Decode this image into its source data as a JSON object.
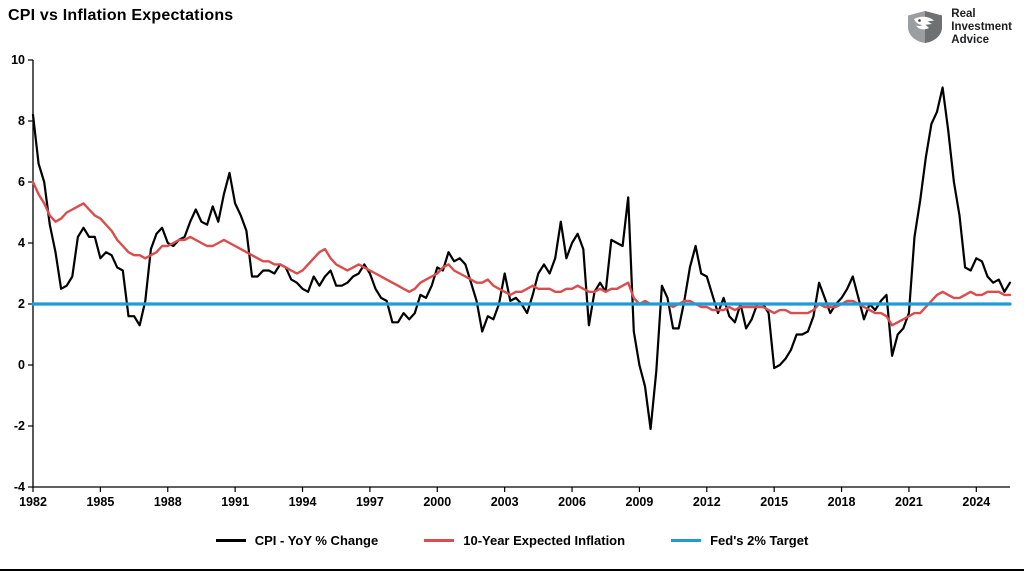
{
  "header": {
    "brand": {
      "lines": [
        "Real",
        "Investment",
        "Advice"
      ],
      "icon": "eagle-shield"
    }
  },
  "chart_data": {
    "type": "line",
    "title": "CPI vs Inflation Expectations",
    "xlabel": "",
    "ylabel": "",
    "xlim": [
      1982,
      2025.5
    ],
    "ylim": [
      -4,
      10
    ],
    "y_ticks": [
      -4,
      -2,
      0,
      2,
      4,
      6,
      8,
      10
    ],
    "x_ticks": [
      1982,
      1985,
      1988,
      1991,
      1994,
      1997,
      2000,
      2003,
      2006,
      2009,
      2012,
      2015,
      2018,
      2021,
      2024
    ],
    "grid": false,
    "legend_position": "bottom",
    "x": {
      "start": 1982,
      "step": 0.25,
      "unit": "year"
    },
    "series": [
      {
        "name": "CPI - YoY % Change",
        "color": "#000000",
        "width": 2.2,
        "values": [
          8.2,
          6.6,
          6.0,
          4.6,
          3.7,
          2.5,
          2.6,
          2.9,
          4.2,
          4.5,
          4.2,
          4.2,
          3.5,
          3.7,
          3.6,
          3.2,
          3.1,
          1.6,
          1.6,
          1.3,
          2.1,
          3.8,
          4.3,
          4.5,
          4.0,
          3.9,
          4.1,
          4.2,
          4.7,
          5.1,
          4.7,
          4.6,
          5.2,
          4.7,
          5.6,
          6.3,
          5.3,
          4.9,
          4.4,
          2.9,
          2.9,
          3.1,
          3.1,
          3.0,
          3.3,
          3.2,
          2.8,
          2.7,
          2.5,
          2.4,
          2.9,
          2.6,
          2.9,
          3.1,
          2.6,
          2.6,
          2.7,
          2.9,
          3.0,
          3.3,
          3.0,
          2.5,
          2.2,
          2.1,
          1.4,
          1.4,
          1.7,
          1.5,
          1.7,
          2.3,
          2.2,
          2.6,
          3.2,
          3.1,
          3.7,
          3.4,
          3.5,
          3.3,
          2.7,
          2.1,
          1.1,
          1.6,
          1.5,
          2.0,
          3.0,
          2.1,
          2.2,
          2.0,
          1.7,
          2.3,
          3.0,
          3.3,
          3.0,
          3.5,
          4.7,
          3.5,
          4.0,
          4.3,
          3.8,
          1.3,
          2.4,
          2.7,
          2.4,
          4.1,
          4.0,
          3.9,
          5.5,
          1.1,
          0.0,
          -0.7,
          -2.1,
          -0.2,
          2.6,
          2.2,
          1.2,
          1.2,
          2.1,
          3.2,
          3.9,
          3.0,
          2.9,
          2.3,
          1.7,
          2.2,
          1.6,
          1.4,
          2.0,
          1.2,
          1.5,
          2.0,
          2.0,
          1.7,
          -0.1,
          0.0,
          0.2,
          0.5,
          1.0,
          1.0,
          1.1,
          1.6,
          2.7,
          2.2,
          1.7,
          2.0,
          2.2,
          2.5,
          2.9,
          2.2,
          1.5,
          2.0,
          1.8,
          2.1,
          2.3,
          0.3,
          1.0,
          1.2,
          1.7,
          4.2,
          5.4,
          6.8,
          7.9,
          8.3,
          9.1,
          7.7,
          6.0,
          4.9,
          3.2,
          3.1,
          3.5,
          3.4,
          2.9,
          2.7,
          2.8,
          2.4,
          2.7
        ]
      },
      {
        "name": "10-Year Expected Inflation",
        "color": "#dd4c4c",
        "width": 2.4,
        "values": [
          6.0,
          5.6,
          5.3,
          4.9,
          4.7,
          4.8,
          5.0,
          5.1,
          5.2,
          5.3,
          5.1,
          4.9,
          4.8,
          4.6,
          4.4,
          4.1,
          3.9,
          3.7,
          3.6,
          3.6,
          3.5,
          3.6,
          3.7,
          3.9,
          3.9,
          4.0,
          4.1,
          4.1,
          4.2,
          4.1,
          4.0,
          3.9,
          3.9,
          4.0,
          4.1,
          4.0,
          3.9,
          3.8,
          3.7,
          3.6,
          3.5,
          3.4,
          3.4,
          3.3,
          3.3,
          3.2,
          3.1,
          3.0,
          3.1,
          3.3,
          3.5,
          3.7,
          3.8,
          3.5,
          3.3,
          3.2,
          3.1,
          3.2,
          3.3,
          3.2,
          3.1,
          3.0,
          2.9,
          2.8,
          2.7,
          2.6,
          2.5,
          2.4,
          2.5,
          2.7,
          2.8,
          2.9,
          3.0,
          3.2,
          3.3,
          3.1,
          3.0,
          2.9,
          2.8,
          2.7,
          2.7,
          2.8,
          2.6,
          2.5,
          2.4,
          2.3,
          2.4,
          2.4,
          2.5,
          2.6,
          2.5,
          2.5,
          2.5,
          2.4,
          2.4,
          2.5,
          2.5,
          2.6,
          2.5,
          2.4,
          2.4,
          2.5,
          2.4,
          2.5,
          2.5,
          2.6,
          2.7,
          2.2,
          2.0,
          2.1,
          2.0,
          2.0,
          2.0,
          2.0,
          1.9,
          2.0,
          2.1,
          2.1,
          2.0,
          1.9,
          1.9,
          1.8,
          1.8,
          1.8,
          1.9,
          1.8,
          1.9,
          1.9,
          1.9,
          1.9,
          1.9,
          1.8,
          1.7,
          1.8,
          1.8,
          1.7,
          1.7,
          1.7,
          1.7,
          1.8,
          2.0,
          1.9,
          1.9,
          1.9,
          2.0,
          2.1,
          2.1,
          2.0,
          1.9,
          1.8,
          1.7,
          1.7,
          1.6,
          1.3,
          1.4,
          1.5,
          1.6,
          1.7,
          1.7,
          1.9,
          2.1,
          2.3,
          2.4,
          2.3,
          2.2,
          2.2,
          2.3,
          2.4,
          2.3,
          2.3,
          2.4,
          2.4,
          2.4,
          2.3,
          2.3
        ]
      },
      {
        "name": "Fed's 2% Target",
        "color": "#1f9cd8",
        "width": 3.2,
        "constant": 2
      }
    ]
  }
}
